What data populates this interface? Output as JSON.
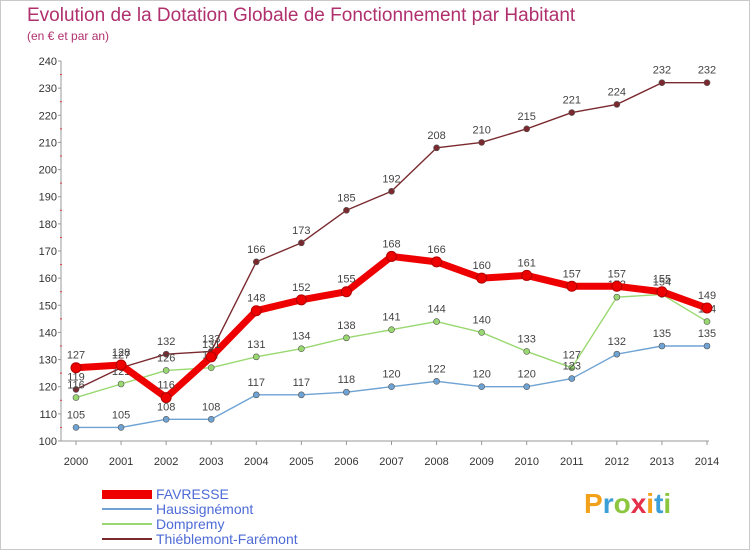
{
  "header": {
    "title": "Evolution de la Dotation Globale de Fonctionnement par Habitant",
    "subtitle": "(en € et par an)"
  },
  "logo": {
    "text": "Proxiti",
    "colors": [
      "#f2a11a",
      "#3c9fd8",
      "#8cc63f",
      "#e5304a",
      "#f2a11a",
      "#3c9fd8",
      "#8cc63f"
    ]
  },
  "chart_data": {
    "type": "line",
    "title": "Evolution de la Dotation Globale de Fonctionnement par Habitant",
    "subtitle": "(en € et par an)",
    "xlabel": "",
    "ylabel": "",
    "x": [
      2000,
      2001,
      2002,
      2003,
      2004,
      2005,
      2006,
      2007,
      2008,
      2009,
      2010,
      2011,
      2012,
      2013,
      2014
    ],
    "ylim": [
      100,
      240
    ],
    "yticks": [
      100,
      110,
      120,
      130,
      140,
      150,
      160,
      170,
      180,
      190,
      200,
      210,
      220,
      230,
      240
    ],
    "grid": false,
    "legend_position": "bottom-left",
    "series": [
      {
        "name": "Thiéblemont-Farémont",
        "color": "#7a2a2f",
        "style": "thin",
        "values": [
          119,
          127,
          132,
          133,
          166,
          173,
          185,
          192,
          208,
          210,
          215,
          221,
          224,
          232,
          232
        ],
        "labels": [
          "119",
          "127",
          "132",
          "133",
          "166",
          "173",
          "185",
          "192",
          "208",
          "210",
          "215",
          "221",
          "224",
          "232",
          "232"
        ]
      },
      {
        "name": "Dompremy",
        "color": "#99d870",
        "style": "thin",
        "values": [
          116,
          121,
          126,
          127,
          131,
          134,
          138,
          141,
          144,
          140,
          133,
          127,
          153,
          154,
          144
        ],
        "labels": [
          "116",
          "121",
          "126",
          "127",
          "131",
          "134",
          "138",
          "141",
          "144",
          "140",
          "133",
          "127",
          "153",
          "154",
          "144"
        ]
      },
      {
        "name": "Haussignémont",
        "color": "#6fa3d3",
        "style": "thin",
        "values": [
          105,
          105,
          108,
          108,
          117,
          117,
          118,
          120,
          122,
          120,
          120,
          123,
          132,
          135,
          135
        ],
        "labels": [
          "105",
          "105",
          "108",
          "108",
          "117",
          "117",
          "118",
          "120",
          "122",
          "120",
          "120",
          "123",
          "132",
          "135",
          "135"
        ]
      },
      {
        "name": "FAVRESSE",
        "color": "#ee0000",
        "style": "thick",
        "values": [
          127,
          128,
          116,
          131,
          148,
          152,
          155,
          168,
          166,
          160,
          161,
          157,
          157,
          155,
          149
        ],
        "labels": [
          "127",
          "128",
          "116",
          "131",
          "148",
          "152",
          "155",
          "168",
          "166",
          "160",
          "161",
          "157",
          "157",
          "155",
          "149"
        ]
      }
    ],
    "legend_order": [
      "FAVRESSE",
      "Haussignémont",
      "Dompremy",
      "Thiéblemont-Farémont"
    ]
  }
}
